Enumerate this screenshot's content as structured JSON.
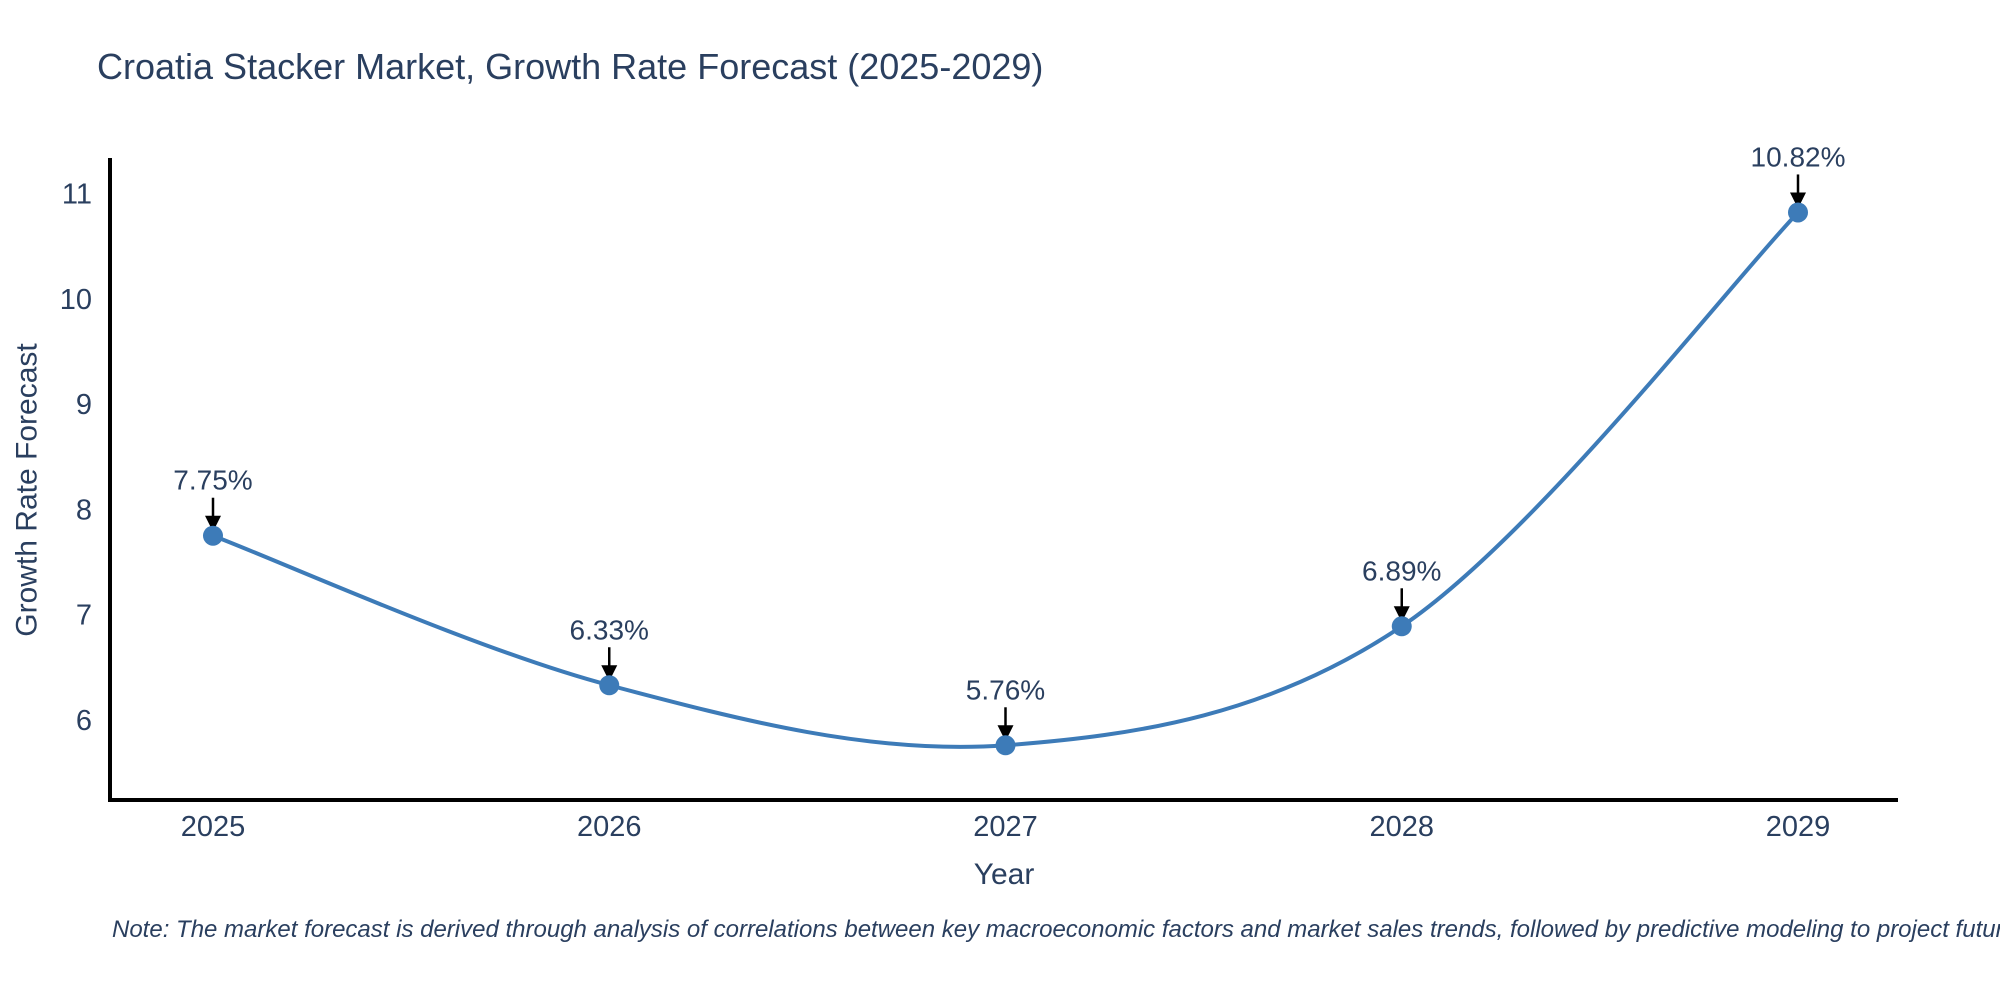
{
  "header": {
    "title": "Croatia Stacker Market, Growth Rate Forecast (2025-2029)"
  },
  "chart_data": {
    "type": "line",
    "title": "Croatia Stacker Market, Growth Rate Forecast (2025-2029)",
    "xlabel": "Year",
    "ylabel": "Growth Rate Forecast",
    "categories": [
      "2025",
      "2026",
      "2027",
      "2028",
      "2029"
    ],
    "series": [
      {
        "name": "Growth Rate Forecast",
        "values": [
          7.75,
          6.33,
          5.76,
          6.89,
          10.82
        ]
      }
    ],
    "point_labels": [
      "7.75%",
      "6.33%",
      "5.76%",
      "6.89%",
      "10.82%"
    ],
    "y_ticks": [
      6,
      7,
      8,
      9,
      10,
      11
    ],
    "ylim": [
      5.24,
      11.32
    ],
    "xlim": [
      2024.74,
      2029.25
    ],
    "grid": false,
    "legend": false,
    "line_shape": "spline",
    "marker": "circle"
  },
  "colors": {
    "line": "#3d7bb8",
    "marker": "#3d7bb8",
    "axis": "#000000",
    "text": "#2a3f5f",
    "arrow": "#000000",
    "background": "#ffffff"
  },
  "footnote": {
    "text": "Note: The market forecast is derived through analysis of correlations between key macroeconomic factors and market sales trends, followed by predictive modeling to project future sales."
  }
}
